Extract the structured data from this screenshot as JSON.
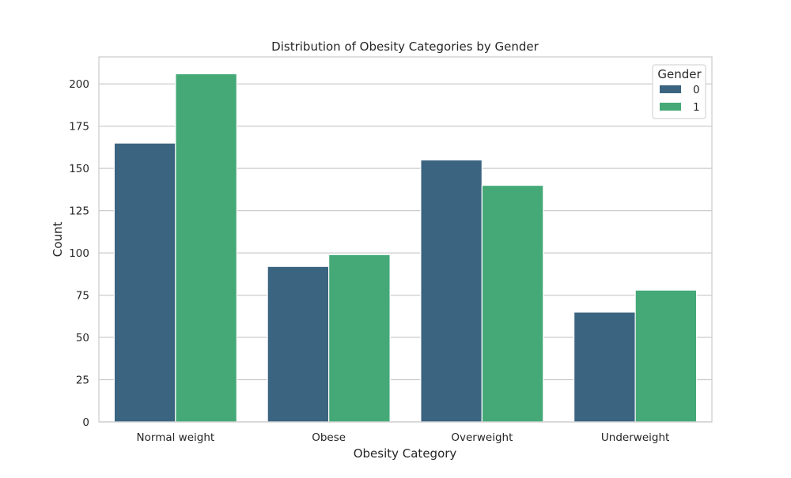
{
  "chart_data": {
    "type": "bar",
    "title": "Distribution of Obesity Categories by Gender",
    "xlabel": "Obesity Category",
    "ylabel": "Count",
    "categories": [
      "Normal weight",
      "Obese",
      "Overweight",
      "Underweight"
    ],
    "series": [
      {
        "name": "0",
        "color": "#3b6481",
        "values": [
          165,
          92,
          155,
          65
        ]
      },
      {
        "name": "1",
        "color": "#44a977",
        "values": [
          206,
          99,
          140,
          78
        ]
      }
    ],
    "ylim": [
      0,
      216
    ],
    "yticks": [
      0,
      25,
      50,
      75,
      100,
      125,
      150,
      175,
      200
    ],
    "grid": true,
    "legend": {
      "title": "Gender",
      "position": "top-right"
    }
  }
}
